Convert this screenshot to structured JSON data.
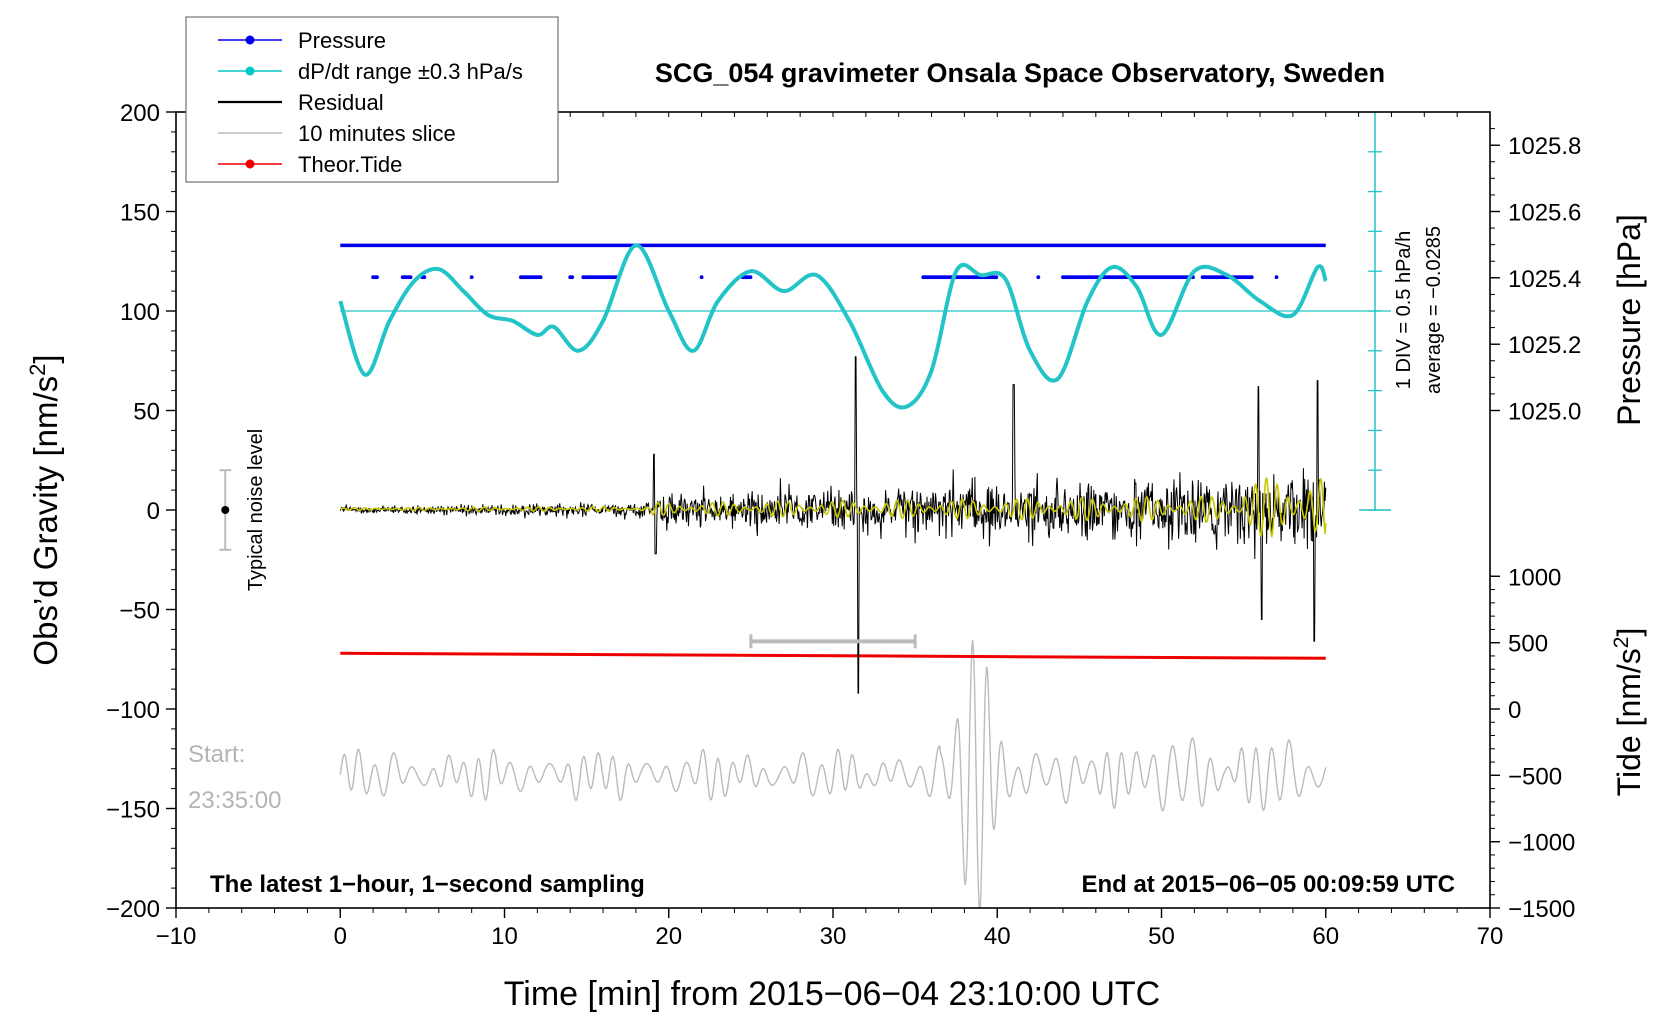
{
  "chart_data": {
    "type": "line",
    "title": "SCG_054 gravimeter Onsala Space Observatory, Sweden",
    "xlabel": "Time [min] from 2015−06−04 23:10:00 UTC",
    "ylabel_left_prefix": "Obs’d Gravity [nm/s",
    "ylabel_left_suffix": "]",
    "ylabel_right_pressure": "Pressure [hPa]",
    "ylabel_right_tide_prefix": "Tide [nm/s",
    "ylabel_right_tide_suffix": "]",
    "superscript": "2",
    "xlim": [
      -10,
      70
    ],
    "xticks": [
      -10,
      0,
      10,
      20,
      30,
      40,
      50,
      60,
      70
    ],
    "xtick_labels": [
      "−10",
      "0",
      "10",
      "20",
      "30",
      "40",
      "50",
      "60",
      "70"
    ],
    "ylim": [
      -200,
      200
    ],
    "yticks": [
      -200,
      -150,
      -100,
      -50,
      0,
      50,
      100,
      150,
      200
    ],
    "ytick_labels": [
      "−200",
      "−150",
      "−100",
      "−50",
      "0",
      "50",
      "100",
      "150",
      "200"
    ],
    "pressure_ticks": [
      1025.0,
      1025.2,
      1025.4,
      1025.6,
      1025.8
    ],
    "pressure_tick_labels": [
      "1025.0",
      "1025.2",
      "1025.4",
      "1025.6",
      "1025.8"
    ],
    "pressure_gravity_equiv": [
      50,
      83.3,
      116.7,
      150,
      183.3
    ],
    "tide_ticks": [
      -1500,
      -1000,
      -500,
      0,
      500,
      1000
    ],
    "tide_tick_labels": [
      "−1500",
      "−1000",
      "−500",
      "0",
      "500",
      "1000"
    ],
    "tide_gravity_equiv": [
      -200,
      -166.7,
      -133.3,
      -100,
      -66.7,
      -33.3
    ],
    "legend": [
      {
        "label": "Pressure",
        "color": "#0000ee",
        "marker": true
      },
      {
        "label": "dP/dt range ±0.3 hPa/s",
        "color": "#00c8c8",
        "marker": true
      },
      {
        "label": "Residual",
        "color": "#000000",
        "marker": false
      },
      {
        "label": "10 minutes slice",
        "color": "#bbbbbb",
        "marker": false
      },
      {
        "label": "Theor.Tide",
        "color": "#ee0000",
        "marker": true
      }
    ],
    "series": [
      {
        "name": "Pressure",
        "color": "#0000ee",
        "x_range": [
          0,
          60
        ],
        "level_main": 133,
        "level_secondary": 117
      },
      {
        "name": "dP/dt",
        "color": "#22c4c8",
        "x": [
          0,
          1.5,
          3,
          4.5,
          6,
          7.5,
          9,
          10.5,
          12,
          13,
          14.5,
          16,
          18,
          20,
          21.5,
          23,
          25,
          27,
          29,
          31,
          33,
          34.5,
          36,
          37.5,
          39,
          40.5,
          42,
          43.7,
          45.5,
          47,
          48.5,
          50,
          52,
          54,
          56,
          58,
          59.5,
          60
        ],
        "values": [
          105,
          68,
          95,
          115,
          121,
          110,
          98,
          95,
          88,
          92,
          80,
          95,
          133,
          100,
          80,
          105,
          120,
          110,
          118,
          95,
          60,
          52,
          70,
          120,
          118,
          116,
          80,
          66,
          105,
          122,
          112,
          88,
          120,
          118,
          105,
          98,
          122,
          115
        ]
      },
      {
        "name": "Residual",
        "color": "#000000",
        "x_range": [
          0,
          60
        ],
        "zero": 0
      },
      {
        "name": "Smoothed residual",
        "color": "#c8c800",
        "x_range": [
          0,
          60
        ]
      },
      {
        "name": "Theor.Tide",
        "color": "#ee0000",
        "x": [
          0,
          60
        ],
        "values": [
          -72,
          -74.5
        ]
      },
      {
        "name": "10 minutes slice",
        "color": "#bbbbbb",
        "x_range": [
          0,
          60
        ],
        "baseline": -133
      }
    ],
    "slice_bracket": {
      "x_start": 25,
      "x_end": 35,
      "y": -66
    },
    "dpdt_reference": {
      "y": 100
    },
    "scale_bar": {
      "x": 63,
      "y_top": 200,
      "y_bottom": 0
    },
    "noise_marker": {
      "x": -7,
      "y": 0,
      "y_low": -20,
      "y_high": 20
    },
    "annotations": {
      "noise_label": "Typical noise level",
      "div_label": "1 DIV = 0.5 hPa/h",
      "average_label": "average = −0.0285",
      "start_label": "Start:",
      "start_time": "23:35:00",
      "footer_left": "The latest 1−hour, 1−second sampling",
      "footer_right": "End at 2015−06−05 00:09:59 UTC"
    }
  }
}
